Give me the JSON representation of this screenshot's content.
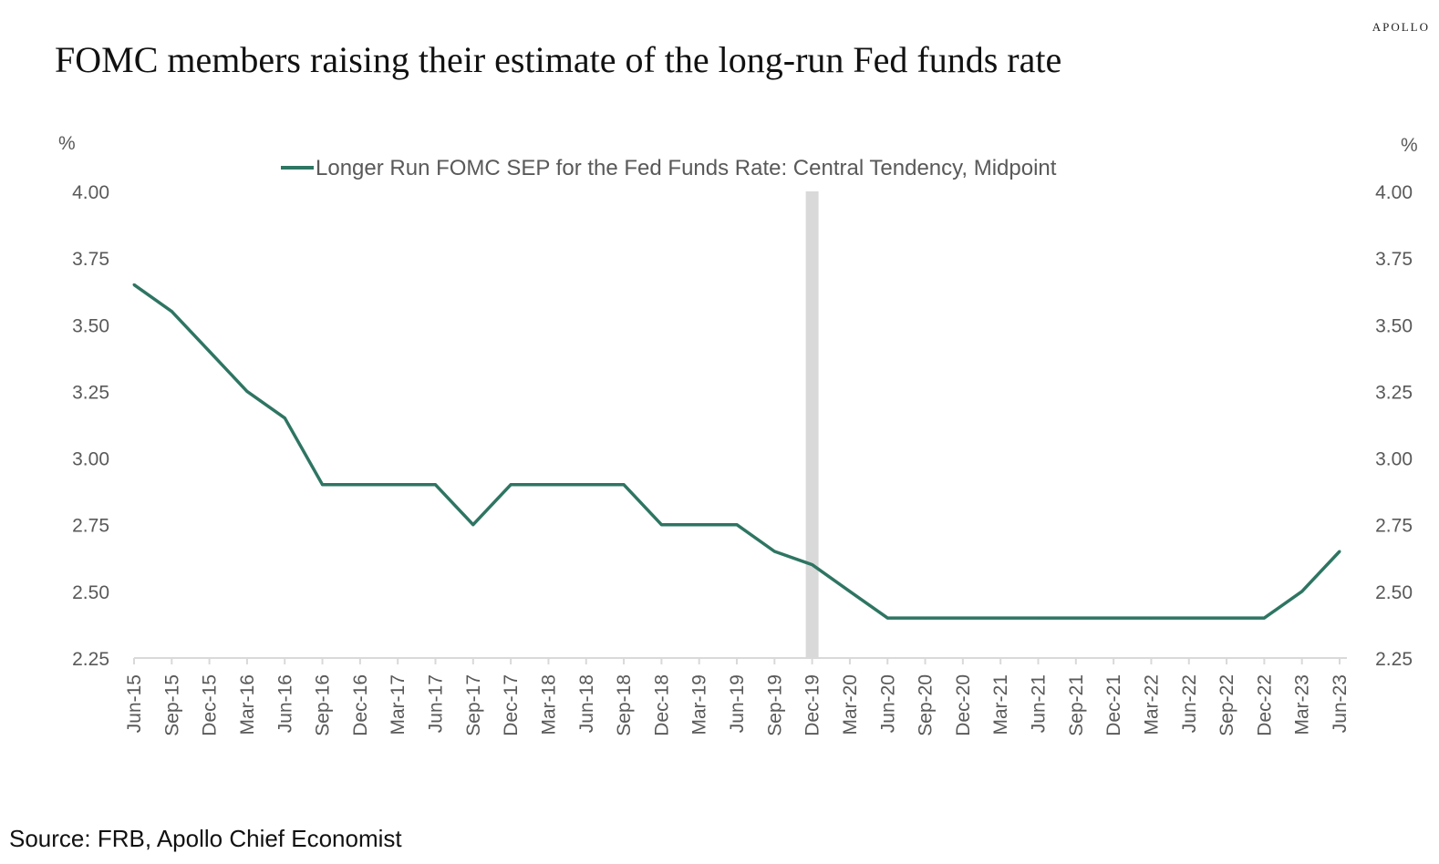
{
  "brand": "APOLLO",
  "source": "Source: FRB, Apollo Chief Economist",
  "colors": {
    "series": "#2e7562",
    "shade": "#d9d9d9",
    "axis": "#d9d9d9",
    "text": "#595959"
  },
  "chart_data": {
    "type": "line",
    "title": "FOMC members raising their estimate of the long-run Fed funds rate",
    "ylabel_left": "%",
    "ylabel_right": "%",
    "ylim": [
      2.25,
      4.0
    ],
    "yticks": [
      "2.25",
      "2.50",
      "2.75",
      "3.00",
      "3.25",
      "3.50",
      "3.75",
      "4.00"
    ],
    "grid": false,
    "legend_position": "top",
    "shaded_period": [
      "Dec-19",
      "Dec-19"
    ],
    "x": [
      "Jun-15",
      "Sep-15",
      "Dec-15",
      "Mar-16",
      "Jun-16",
      "Sep-16",
      "Dec-16",
      "Mar-17",
      "Jun-17",
      "Sep-17",
      "Dec-17",
      "Mar-18",
      "Jun-18",
      "Sep-18",
      "Dec-18",
      "Mar-19",
      "Jun-19",
      "Sep-19",
      "Dec-19",
      "Mar-20",
      "Jun-20",
      "Sep-20",
      "Dec-20",
      "Mar-21",
      "Jun-21",
      "Sep-21",
      "Dec-21",
      "Mar-22",
      "Jun-22",
      "Sep-22",
      "Dec-22",
      "Mar-23",
      "Jun-23"
    ],
    "series": [
      {
        "name": "Longer Run FOMC SEP for the Fed Funds Rate: Central Tendency, Midpoint",
        "values": [
          3.65,
          3.55,
          3.4,
          3.25,
          3.15,
          2.9,
          2.9,
          2.9,
          2.9,
          2.75,
          2.9,
          2.9,
          2.9,
          2.9,
          2.75,
          2.75,
          2.75,
          2.65,
          2.6,
          2.5,
          2.4,
          2.4,
          2.4,
          2.4,
          2.4,
          2.4,
          2.4,
          2.4,
          2.4,
          2.4,
          2.4,
          2.5,
          2.65
        ]
      }
    ]
  }
}
